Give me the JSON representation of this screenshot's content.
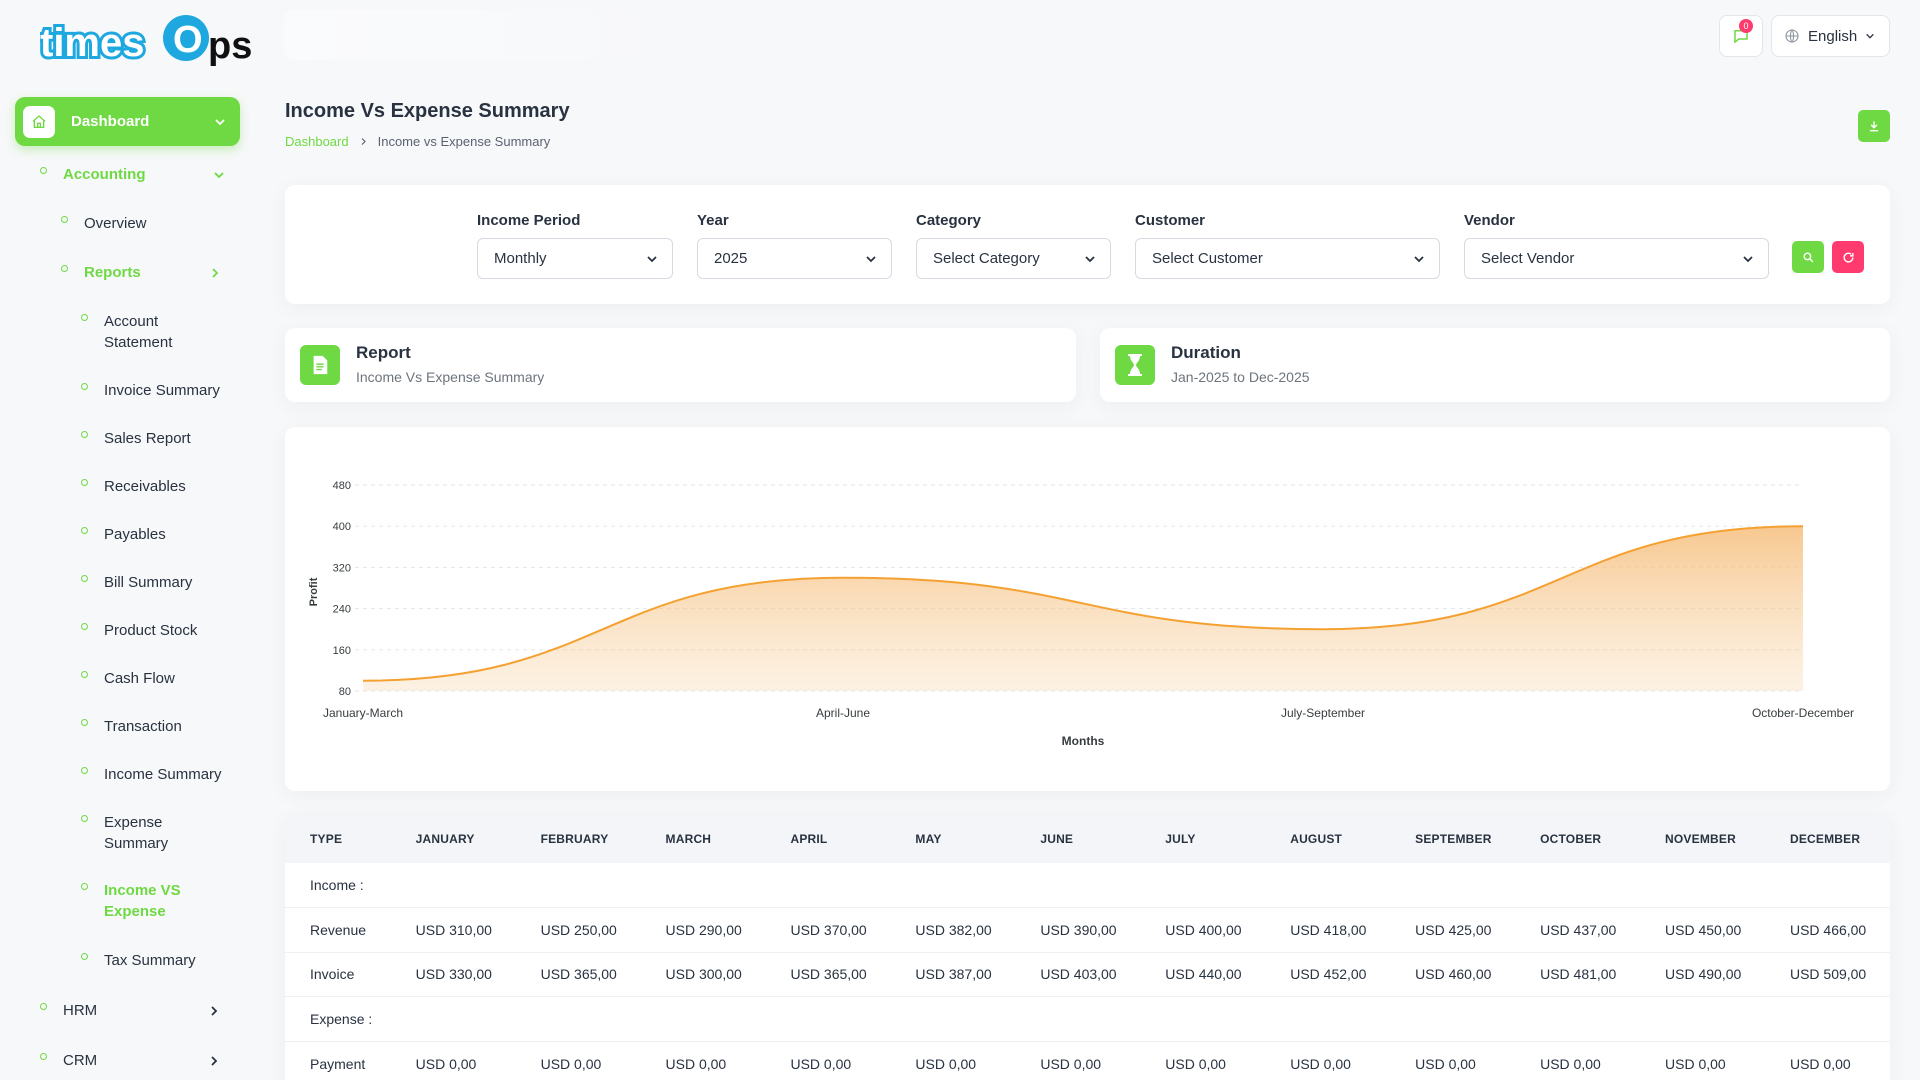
{
  "brand": {
    "logo_text_1": "times",
    "logo_text_2": "O",
    "logo_text_3": "ps"
  },
  "sidebar": {
    "dashboard": "Dashboard",
    "accounting": "Accounting",
    "overview": "Overview",
    "reports": "Reports",
    "items": [
      "Account Statement",
      "Invoice Summary",
      "Sales Report",
      "Receivables",
      "Payables",
      "Bill Summary",
      "Product Stock",
      "Cash Flow",
      "Transaction",
      "Income Summary",
      "Expense Summary",
      "Income VS Expense",
      "Tax Summary"
    ],
    "hrm": "HRM",
    "crm": "CRM"
  },
  "header": {
    "notif_count": "0",
    "language": "English",
    "title": "Income Vs Expense Summary",
    "breadcrumb_home": "Dashboard",
    "breadcrumb_current": "Income vs Expense Summary"
  },
  "filters": {
    "period_label": "Income Period",
    "period_value": "Monthly",
    "year_label": "Year",
    "year_value": "2025",
    "category_label": "Category",
    "category_value": "Select Category",
    "customer_label": "Customer",
    "customer_value": "Select Customer",
    "vendor_label": "Vendor",
    "vendor_value": "Select Vendor"
  },
  "report_card": {
    "title": "Report",
    "value": "Income Vs Expense Summary"
  },
  "duration_card": {
    "title": "Duration",
    "value": "Jan-2025 to Dec-2025"
  },
  "colors": {
    "accent": "#6fd943",
    "danger": "#ff3a6e",
    "series": "#f5a131"
  },
  "chart_data": {
    "type": "area",
    "categories": [
      "January-March",
      "April-June",
      "July-September",
      "October-December"
    ],
    "series": [
      {
        "values": [
          100,
          300,
          200,
          400
        ]
      }
    ],
    "xlabel": "Months",
    "ylabel": "Profit",
    "yticks": [
      80,
      160,
      240,
      320,
      400,
      480
    ],
    "ylim": [
      80,
      480
    ],
    "grid": true
  },
  "table": {
    "headers": [
      "TYPE",
      "JANUARY",
      "FEBRUARY",
      "MARCH",
      "APRIL",
      "MAY",
      "JUNE",
      "JULY",
      "AUGUST",
      "SEPTEMBER",
      "OCTOBER",
      "NOVEMBER",
      "DECEMBER"
    ],
    "income_label": "Income :",
    "revenue": [
      "Revenue",
      "USD 310,00",
      "USD 250,00",
      "USD 290,00",
      "USD 370,00",
      "USD 382,00",
      "USD 390,00",
      "USD 400,00",
      "USD 418,00",
      "USD 425,00",
      "USD 437,00",
      "USD 450,00",
      "USD 466,00"
    ],
    "invoice": [
      "Invoice",
      "USD 330,00",
      "USD 365,00",
      "USD 300,00",
      "USD 365,00",
      "USD 387,00",
      "USD 403,00",
      "USD 440,00",
      "USD 452,00",
      "USD 460,00",
      "USD 481,00",
      "USD 490,00",
      "USD 509,00"
    ],
    "expense_label": "Expense :",
    "payment": [
      "Payment",
      "USD 0,00",
      "USD 0,00",
      "USD 0,00",
      "USD 0,00",
      "USD 0,00",
      "USD 0,00",
      "USD 0,00",
      "USD 0,00",
      "USD 0,00",
      "USD 0,00",
      "USD 0,00",
      "USD 0,00"
    ]
  }
}
